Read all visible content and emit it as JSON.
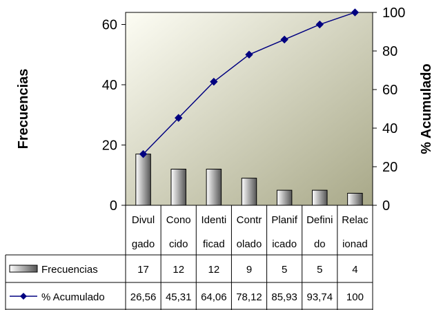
{
  "chart_data": {
    "type": "bar",
    "categories": [
      [
        "Divul",
        "gado"
      ],
      [
        "Cono",
        "cido"
      ],
      [
        "Identi",
        "ficad"
      ],
      [
        "Contr",
        "olado"
      ],
      [
        "Planif",
        "icado"
      ],
      [
        "Defini",
        "do"
      ],
      [
        "Relac",
        "ionad"
      ]
    ],
    "series": [
      {
        "name": "Frecuencias",
        "type": "bar",
        "axis": "left",
        "values": [
          17,
          12,
          12,
          9,
          5,
          5,
          4
        ],
        "labels": [
          "17",
          "12",
          "12",
          "9",
          "5",
          "5",
          "4"
        ]
      },
      {
        "name": "% Acumulado",
        "type": "line",
        "axis": "right",
        "marker": "diamond",
        "values": [
          26.56,
          45.31,
          64.06,
          78.12,
          85.93,
          93.74,
          100
        ],
        "labels": [
          "26,56",
          "45,31",
          "64,06",
          "78,12",
          "85,93",
          "93,74",
          "100"
        ]
      }
    ],
    "y_left": {
      "title": "Frecuencias",
      "range": [
        0,
        64
      ],
      "ticks": [
        0,
        20,
        40,
        60
      ]
    },
    "y_right": {
      "title": "% Acumulado",
      "range": [
        0,
        100
      ],
      "ticks": [
        0,
        20,
        40,
        60,
        80,
        100
      ]
    },
    "grid": false,
    "legend": "data-table",
    "colors": {
      "bar_light": "#ffffff",
      "bar_dark": "#555555",
      "line": "#000080",
      "plot_bg_light": "#fdfdf4",
      "plot_bg_dark": "#a8a888"
    }
  }
}
